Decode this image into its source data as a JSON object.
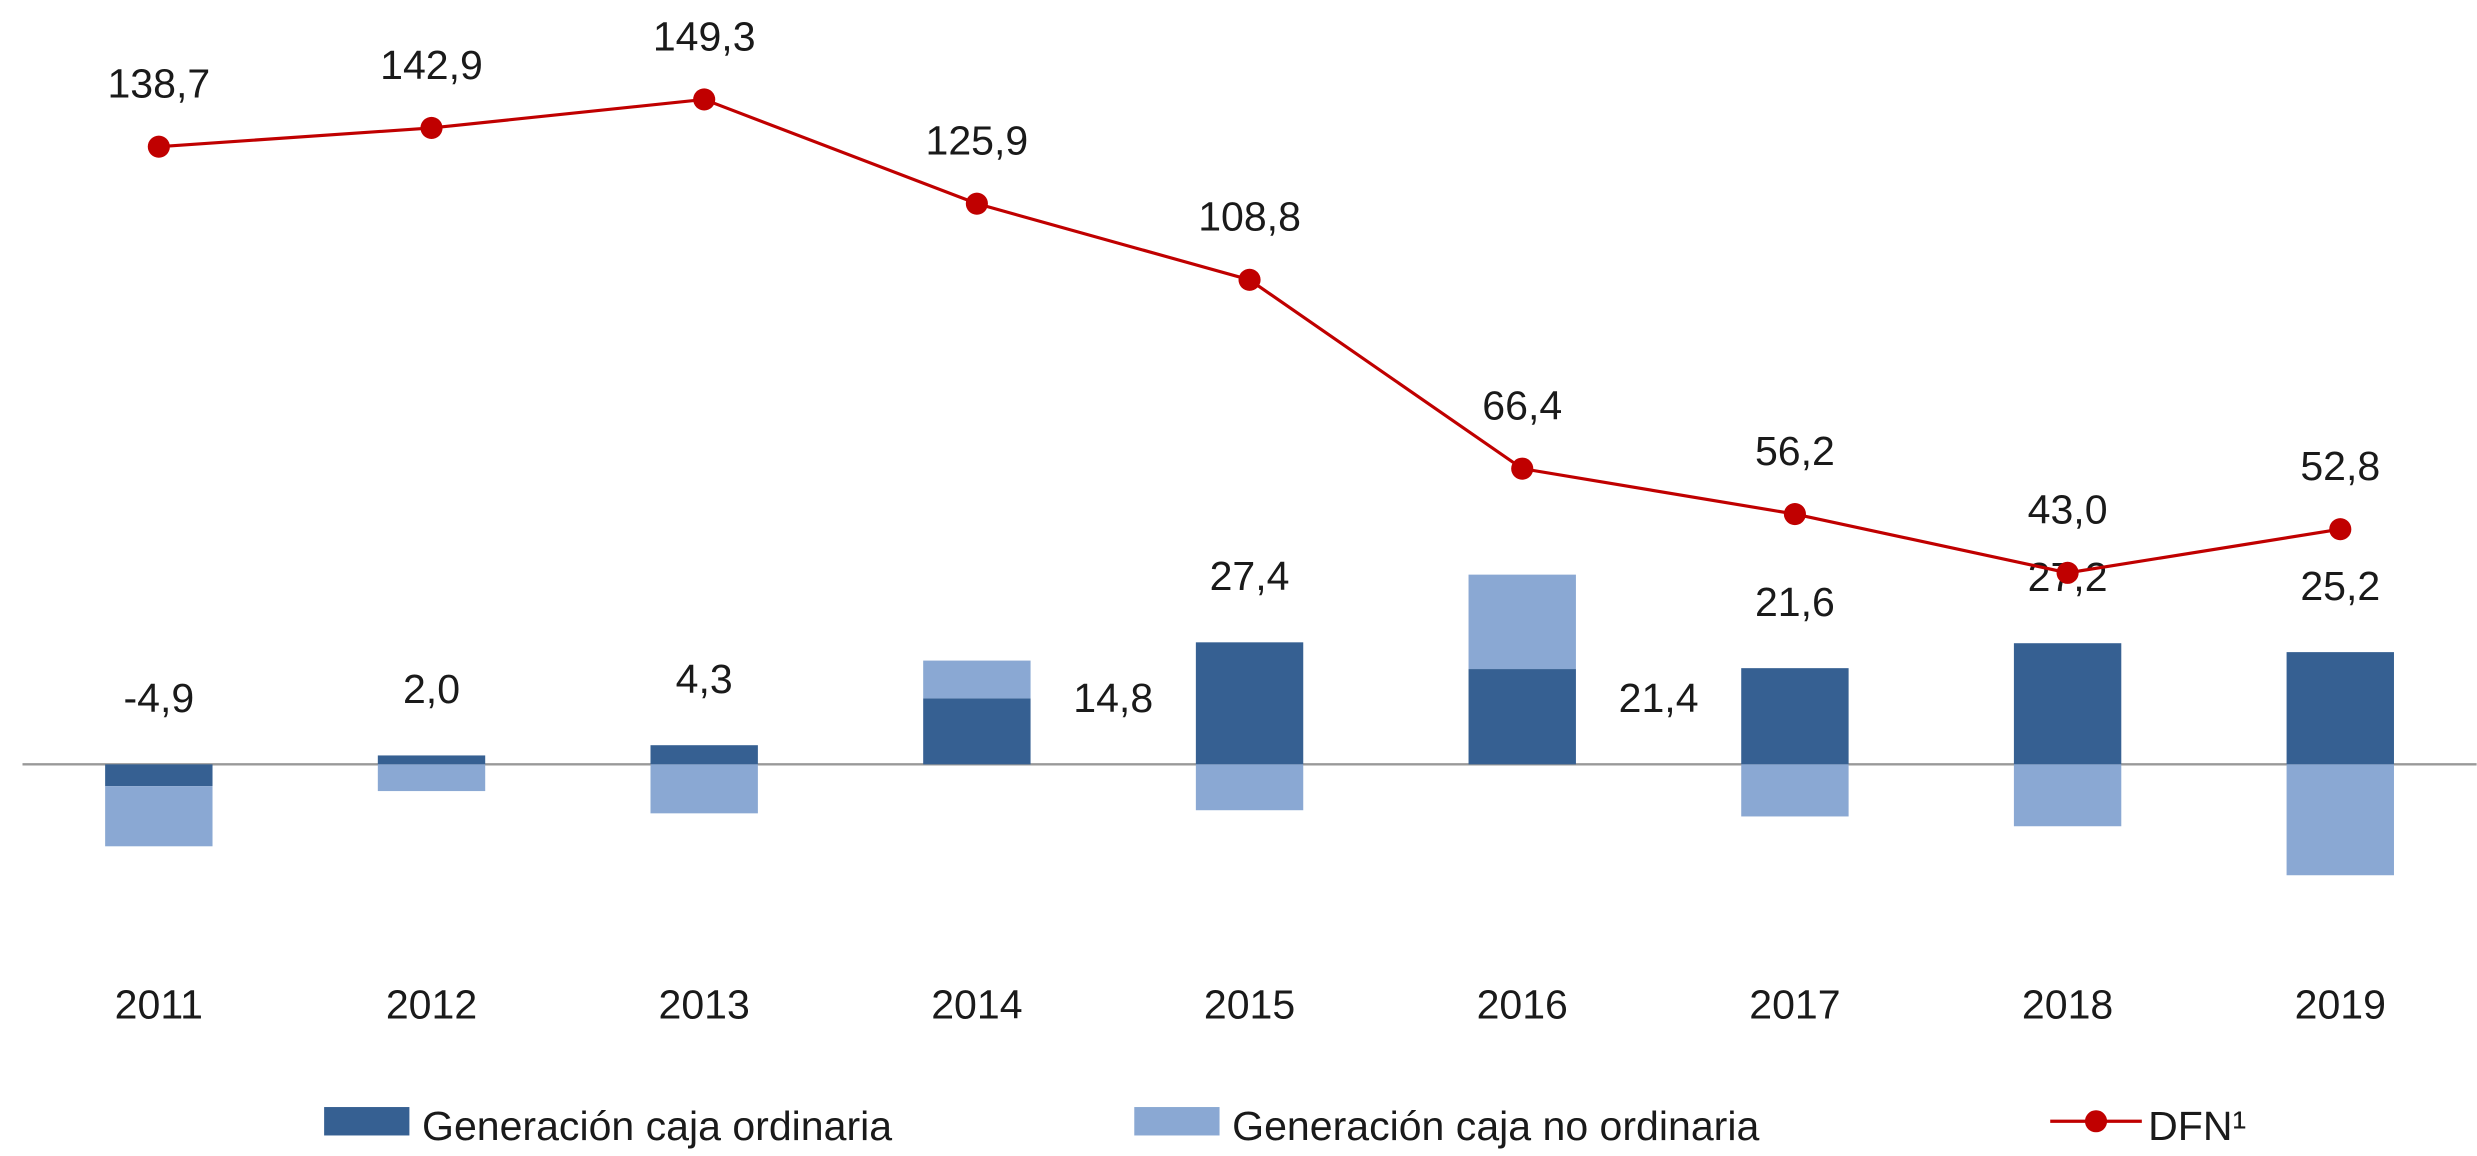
{
  "chart_data": {
    "type": "bar",
    "categories": [
      "2011",
      "2012",
      "2013",
      "2014",
      "2015",
      "2016",
      "2017",
      "2018",
      "2019"
    ],
    "ylim": [
      -40,
      160
    ],
    "series": [
      {
        "name": "Generación caja ordinaria",
        "color": "#366092",
        "type": "bar",
        "values": [
          -4.9,
          2.0,
          4.3,
          14.8,
          27.4,
          21.4,
          21.6,
          27.2,
          25.2
        ],
        "value_labels": [
          "-4,9",
          "2,0",
          "4,3",
          "14,8",
          "27,4",
          "21,4",
          "21,6",
          "27,2",
          "25,2"
        ]
      },
      {
        "name": "Generación caja no ordinaria",
        "color": "#8aa8d3",
        "type": "bar",
        "values": [
          -13.5,
          -6.0,
          -11.0,
          8.5,
          -10.3,
          21.2,
          -11.7,
          -13.9,
          -24.9
        ]
      },
      {
        "name": "DFN¹",
        "color": "#c00000",
        "type": "line",
        "values": [
          138.7,
          142.9,
          149.3,
          125.9,
          108.8,
          66.4,
          56.2,
          43.0,
          52.8
        ],
        "value_labels": [
          "138,7",
          "142,9",
          "149,3",
          "125,9",
          "108,8",
          "66,4",
          "56,2",
          "43,0",
          "52,8"
        ]
      }
    ],
    "legend": "bottom"
  }
}
